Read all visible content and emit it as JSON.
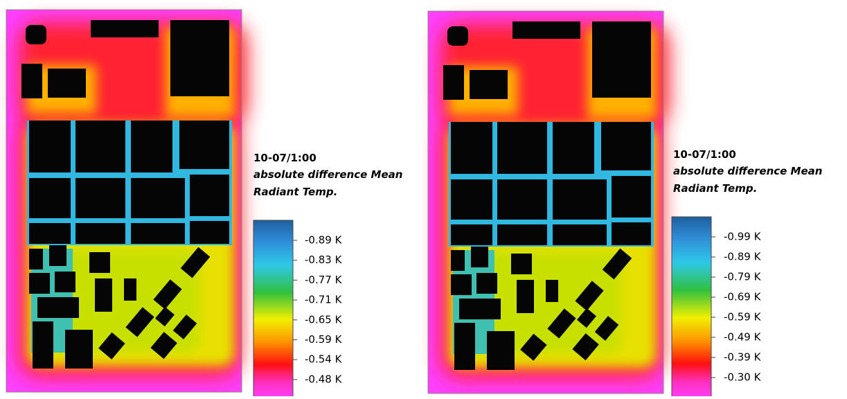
{
  "panels": [
    {
      "timestamp": "10-07/1:00",
      "title_lines": [
        "absolute difference Mean",
        "Radiant Temp."
      ],
      "legend": [
        "-0.89  K",
        "-0.83  K",
        "-0.77  K",
        "-0.71  K",
        "-0.65  K",
        "-0.59  K",
        "-0.54  K",
        "-0.48  K"
      ]
    },
    {
      "timestamp": "10-07/1:00",
      "title_lines": [
        "absolute difference Mean",
        "Radiant Temp."
      ],
      "legend": [
        "-0.99  K",
        "-0.89  K",
        "-0.79  K",
        "-0.69  K",
        "-0.59  K",
        "-0.49  K",
        "-0.39  K",
        "-0.30  K"
      ]
    }
  ]
}
